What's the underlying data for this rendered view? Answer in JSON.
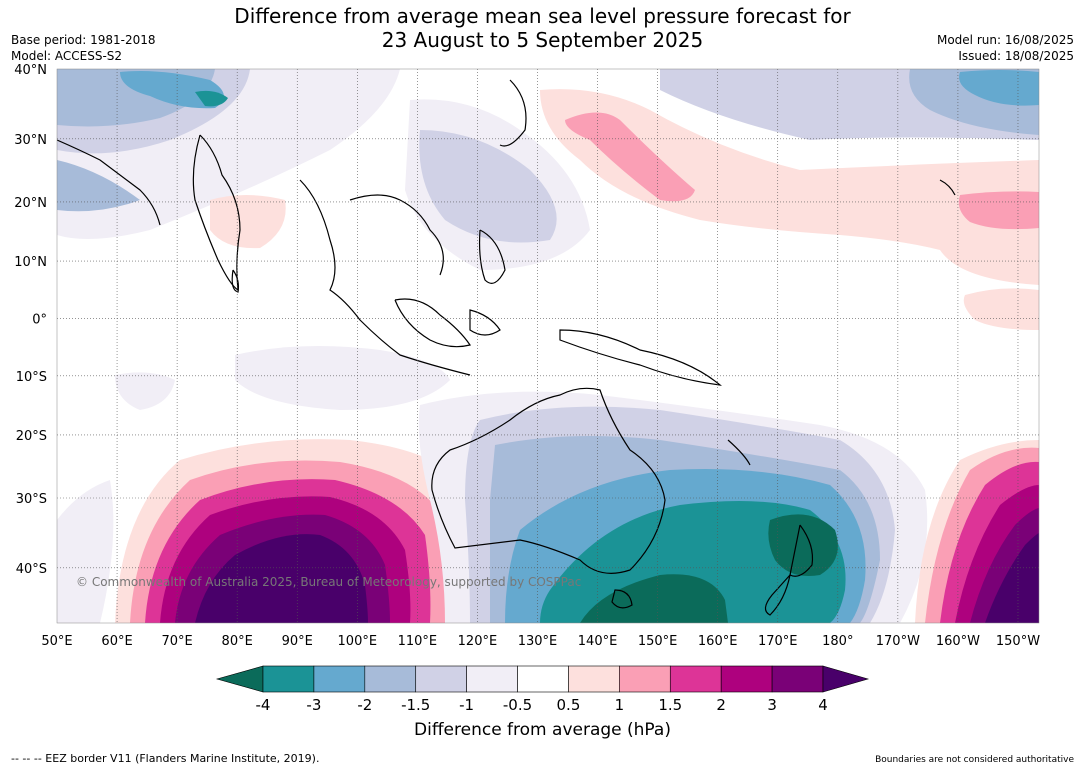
{
  "title": {
    "line1": "Difference from average mean sea level pressure forecast for",
    "line2": "23 August to 5 September 2025"
  },
  "meta_left": {
    "base_period": "Base period: 1981-2018",
    "model": "Model: ACCESS-S2"
  },
  "meta_right": {
    "model_run": "Model run: 16/08/2025",
    "issued": "Issued: 18/08/2025"
  },
  "map": {
    "lon_labels": [
      "50°E",
      "60°E",
      "70°E",
      "80°E",
      "90°E",
      "100°E",
      "110°E",
      "120°E",
      "130°E",
      "140°E",
      "150°E",
      "160°E",
      "170°E",
      "180°",
      "170°W",
      "160°W",
      "150°W"
    ],
    "lat_labels": [
      "40°N",
      "30°N",
      "20°N",
      "10°N",
      "0°",
      "10°S",
      "20°S",
      "30°S",
      "40°S"
    ],
    "copyright": "© Commonwealth of Australia 2025, Bureau of Meteorology, supported by COSPPac"
  },
  "colorbar": {
    "ticks": [
      "-4",
      "-3",
      "-2",
      "-1.5",
      "-1",
      "-0.5",
      "0.5",
      "1",
      "1.5",
      "2",
      "3",
      "4"
    ],
    "colors": [
      "#0b6b5a",
      "#1b9396",
      "#65a9cf",
      "#a7bbd9",
      "#d0d1e6",
      "#f1eef6",
      "#ffffff",
      "#fde0dd",
      "#fa9fb5",
      "#dd3497",
      "#ae017e",
      "#7a0177",
      "#49006a"
    ],
    "label": "Difference from average (hPa)"
  },
  "footer": {
    "left": "--  --  -- EEZ border V11 (Flanders Marine Institute, 2019).",
    "right": "Boundaries are not considered authoritative"
  }
}
